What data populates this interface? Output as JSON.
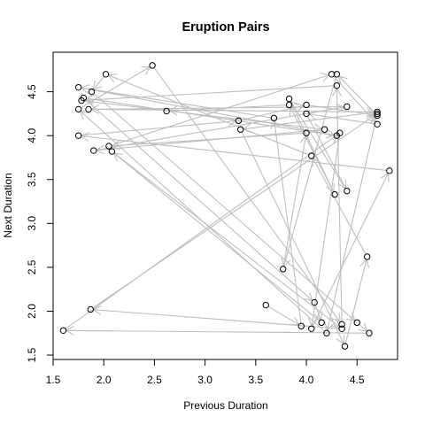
{
  "chart_data": {
    "type": "scatter",
    "title": "Eruption Pairs",
    "xlabel": "Previous Duration",
    "ylabel": "Next Duration",
    "xlim": [
      1.5,
      4.9
    ],
    "ylim": [
      1.45,
      4.95
    ],
    "x_ticks": [
      1.5,
      2.0,
      2.5,
      3.0,
      3.5,
      4.0,
      4.5
    ],
    "x_tick_labels": [
      "1.5",
      "2.0",
      "2.5",
      "3.0",
      "3.5",
      "4.0",
      "4.5"
    ],
    "y_ticks": [
      1.5,
      2.0,
      2.5,
      3.0,
      3.5,
      4.0,
      4.5
    ],
    "y_tick_labels": [
      "1.5",
      "2.0",
      "2.5",
      "3.0",
      "3.5",
      "4.0",
      "4.5"
    ],
    "grid": false,
    "legend": "none",
    "arrows": "each point connects to the next in sequence",
    "colors": {
      "arrow": "#bebebe",
      "point_stroke": "#000000",
      "frame": "#000000"
    },
    "points": [
      [
        3.6,
        2.07
      ],
      [
        3.95,
        1.83
      ],
      [
        3.68,
        4.2
      ],
      [
        1.75,
        4.55
      ],
      [
        4.3,
        4.0
      ],
      [
        1.8,
        4.43
      ],
      [
        4.08,
        2.1
      ],
      [
        4.15,
        1.87
      ],
      [
        2.08,
        3.82
      ],
      [
        4.35,
        1.8
      ],
      [
        1.87,
        2.02
      ],
      [
        4.7,
        4.25
      ],
      [
        4.2,
        1.75
      ],
      [
        1.75,
        4.3
      ],
      [
        2.48,
        4.8
      ],
      [
        4.35,
        1.85
      ],
      [
        4.3,
        4.57
      ],
      [
        1.78,
        4.4
      ],
      [
        4.18,
        4.07
      ],
      [
        1.9,
        3.83
      ],
      [
        4.4,
        4.33
      ],
      [
        1.85,
        4.3
      ],
      [
        4.7,
        4.27
      ],
      [
        3.35,
        4.07
      ],
      [
        4.38,
        1.6
      ],
      [
        4.6,
        2.62
      ],
      [
        4.05,
        3.77
      ],
      [
        2.02,
        4.7
      ],
      [
        1.88,
        4.5
      ],
      [
        4.5,
        1.87
      ],
      [
        4.62,
        1.75
      ],
      [
        1.6,
        1.78
      ],
      [
        4.33,
        4.03
      ],
      [
        4.05,
        1.8
      ],
      [
        4.82,
        3.6
      ],
      [
        1.75,
        4.0
      ],
      [
        3.33,
        4.17
      ],
      [
        4.0,
        4.35
      ],
      [
        4.7,
        4.23
      ],
      [
        4.3,
        4.7
      ],
      [
        3.77,
        2.48
      ],
      [
        4.0,
        4.03
      ],
      [
        2.05,
        3.88
      ],
      [
        4.25,
        4.7
      ],
      [
        4.7,
        4.13
      ],
      [
        4.0,
        4.25
      ],
      [
        4.4,
        3.37
      ],
      [
        3.83,
        4.42
      ],
      [
        4.28,
        3.33
      ],
      [
        3.83,
        4.35
      ],
      [
        2.62,
        4.28
      ]
    ]
  }
}
